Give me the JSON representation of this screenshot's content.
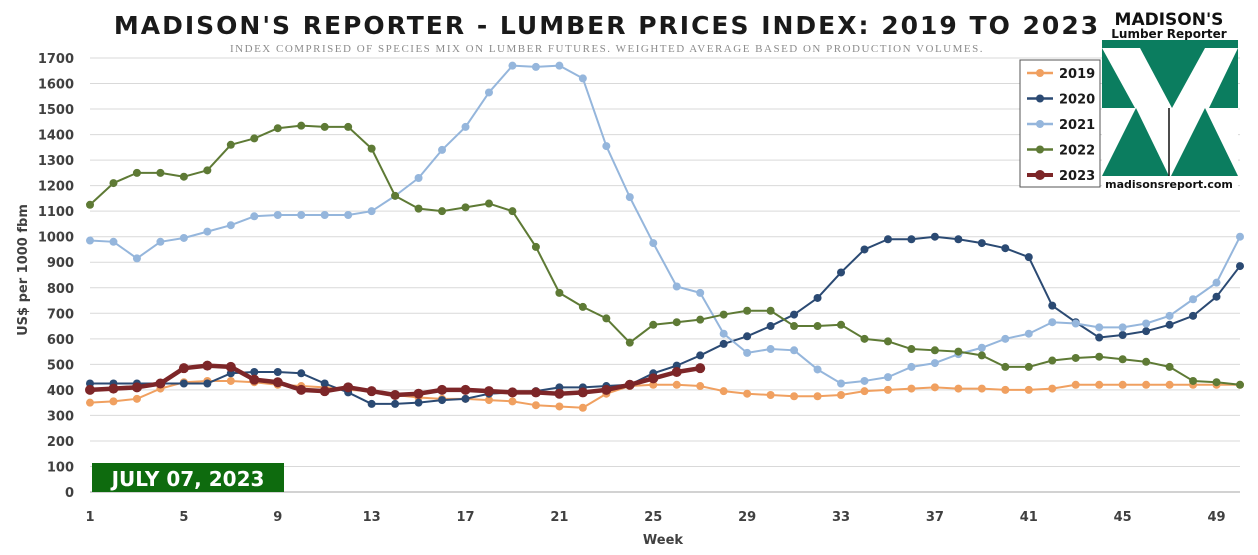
{
  "chart_data": {
    "type": "line",
    "title": "MADISON'S REPORTER - LUMBER PRICES INDEX: 2019 TO 2023",
    "subtitle": "INDEX COMPRISED OF SPECIES MIX ON LUMBER FUTURES. WEIGHTED AVERAGE BASED ON PRODUCTION VOLUMES.",
    "xlabel": "Week",
    "ylabel": "US$ per 1000 fbm",
    "xlim": [
      1,
      50
    ],
    "ylim": [
      0,
      1700
    ],
    "x_ticks": [
      1,
      5,
      9,
      13,
      17,
      21,
      25,
      29,
      33,
      37,
      41,
      45,
      49
    ],
    "y_ticks": [
      0,
      100,
      200,
      300,
      400,
      500,
      600,
      700,
      800,
      900,
      1000,
      1100,
      1200,
      1300,
      1400,
      1500,
      1600,
      1700
    ],
    "grid": "horizontal",
    "legend_position": "top-right",
    "series": [
      {
        "name": "2019",
        "color": "#f0a060",
        "line_width": 2,
        "values": [
          350,
          355,
          365,
          405,
          430,
          435,
          435,
          430,
          420,
          415,
          410,
          400,
          395,
          380,
          370,
          365,
          365,
          360,
          355,
          340,
          335,
          330,
          385,
          415,
          420,
          420,
          415,
          395,
          385,
          380,
          375,
          375,
          380,
          395,
          400,
          405,
          410,
          405,
          405,
          400,
          400,
          405,
          420,
          420,
          420,
          420,
          420,
          420,
          420,
          420
        ]
      },
      {
        "name": "2020",
        "color": "#2b4a73",
        "line_width": 2,
        "values": [
          425,
          425,
          425,
          425,
          425,
          425,
          465,
          470,
          470,
          465,
          425,
          390,
          345,
          345,
          350,
          360,
          365,
          385,
          390,
          395,
          410,
          410,
          415,
          420,
          465,
          495,
          535,
          580,
          610,
          650,
          695,
          760,
          860,
          950,
          990,
          990,
          1000,
          990,
          975,
          955,
          920,
          730,
          665,
          605,
          615,
          630,
          655,
          690,
          765,
          885
        ]
      },
      {
        "name": "2021",
        "color": "#95b6dc",
        "line_width": 2,
        "values": [
          985,
          980,
          915,
          980,
          995,
          1020,
          1045,
          1080,
          1085,
          1085,
          1085,
          1085,
          1100,
          1160,
          1230,
          1340,
          1430,
          1565,
          1670,
          1665,
          1670,
          1620,
          1355,
          1155,
          975,
          805,
          780,
          620,
          545,
          560,
          555,
          480,
          425,
          435,
          450,
          490,
          505,
          540,
          565,
          600,
          620,
          665,
          660,
          645,
          645,
          660,
          690,
          755,
          820,
          1000
        ]
      },
      {
        "name": "2022",
        "color": "#5e7a35",
        "line_width": 2,
        "values": [
          1125,
          1210,
          1250,
          1250,
          1235,
          1260,
          1360,
          1385,
          1425,
          1435,
          1430,
          1430,
          1345,
          1160,
          1110,
          1100,
          1115,
          1130,
          1100,
          960,
          780,
          725,
          680,
          585,
          655,
          665,
          675,
          695,
          710,
          710,
          650,
          650,
          655,
          600,
          590,
          560,
          555,
          550,
          535,
          490,
          490,
          515,
          525,
          530,
          520,
          510,
          490,
          435,
          430,
          420
        ]
      },
      {
        "name": "2023",
        "color": "#7d2628",
        "line_width": 4.5,
        "values": [
          400,
          405,
          410,
          425,
          485,
          495,
          490,
          440,
          430,
          400,
          395,
          410,
          395,
          380,
          385,
          400,
          400,
          395,
          390,
          390,
          385,
          390,
          400,
          420,
          445,
          470,
          485
        ]
      }
    ]
  },
  "brand": {
    "name_line1": "MADISON'S",
    "name_line2": "Lumber Reporter",
    "website": "madisonsreport.com",
    "color": "#0b7d5f"
  },
  "date_badge": {
    "text": "JULY 07, 2023",
    "color": "#0e6b0e"
  }
}
